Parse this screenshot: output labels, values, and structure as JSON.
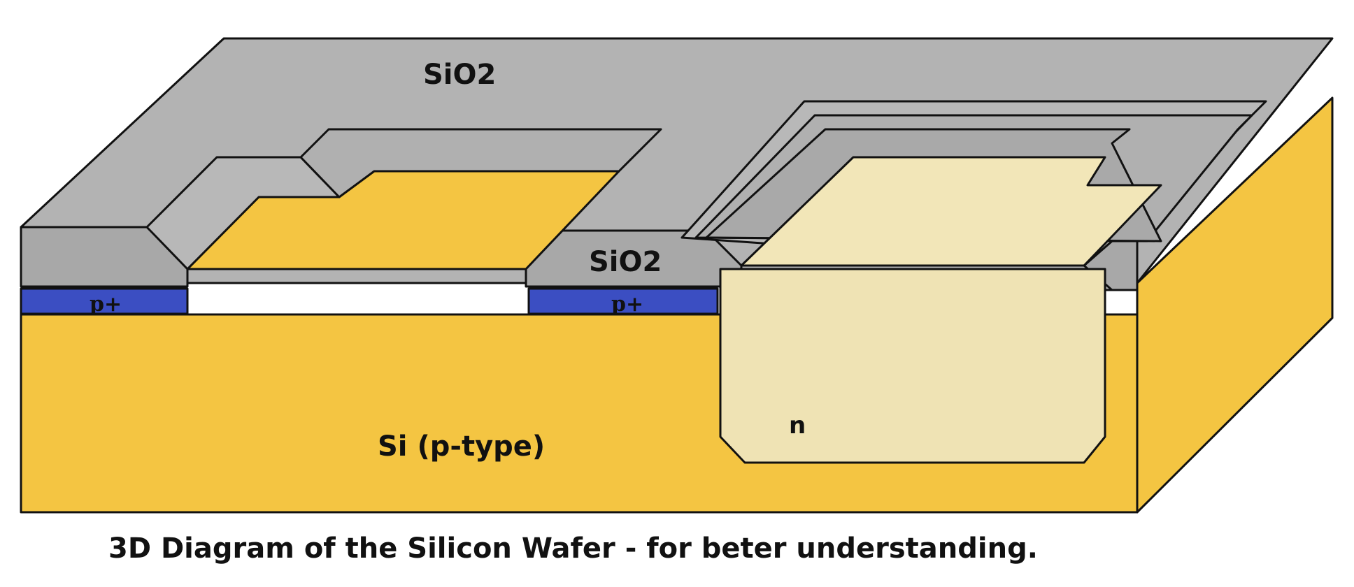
{
  "labels": {
    "sio2_top": "SiO2",
    "sio2_mid": "SiO2",
    "p_plus_left": "p+",
    "p_plus_right": "p+",
    "n_region": "n",
    "substrate": "Si (p-type)"
  },
  "caption": "3D Diagram of the Silicon Wafer - for beter understanding.",
  "colors": {
    "oxide": "#b3b3b3",
    "oxide_shade": "#a6a6a6",
    "silicon": "#f4c542",
    "n_region": "#efe3b4",
    "n_region_top": "#f2e6b8",
    "p_plus": "#3b4ec2",
    "outline": "#111111"
  }
}
